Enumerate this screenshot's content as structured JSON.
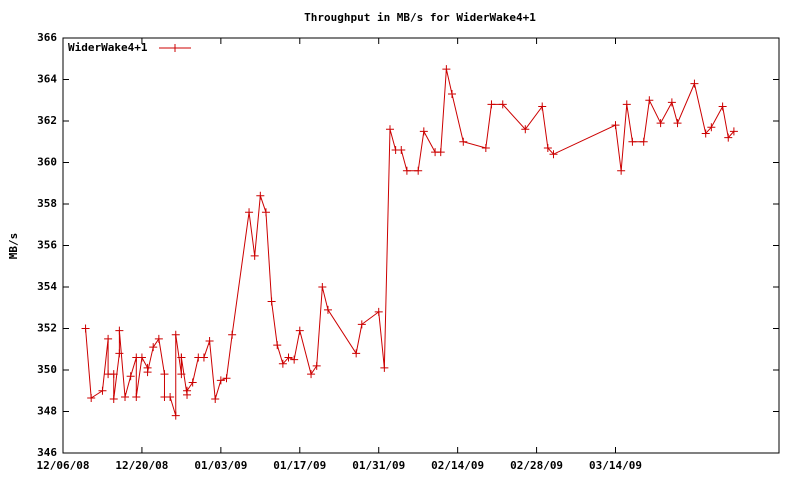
{
  "chart_data": {
    "type": "line",
    "title": "Throughput in MB/s for WiderWake4+1",
    "y_label": "MB/s",
    "legend": "top-left",
    "xlim": [
      "12/06/08",
      "04/12/09"
    ],
    "xticks": [
      "12/06/08",
      "12/20/08",
      "01/03/09",
      "01/17/09",
      "01/31/09",
      "02/14/09",
      "02/28/09",
      "03/14/09"
    ],
    "ylim": [
      346,
      366
    ],
    "yticks": [
      346,
      348,
      350,
      352,
      354,
      356,
      358,
      360,
      362,
      364,
      366
    ],
    "x": [
      "12/10/08",
      "12/11/08",
      "12/13/08",
      "12/14/08",
      "12/14/08",
      "12/15/08",
      "12/15/08",
      "12/16/08",
      "12/16/08",
      "12/17/08",
      "12/18/08",
      "12/19/08",
      "12/19/08",
      "12/20/08",
      "12/21/08",
      "12/21/08",
      "12/22/08",
      "12/23/08",
      "12/24/08",
      "12/24/08",
      "12/25/08",
      "12/26/08",
      "12/26/08",
      "12/27/08",
      "12/27/08",
      "12/27/08",
      "12/28/08",
      "12/28/08",
      "12/29/08",
      "12/30/08",
      "12/31/08",
      "01/01/09",
      "01/02/09",
      "01/03/09",
      "01/04/09",
      "01/05/09",
      "01/08/09",
      "01/09/09",
      "01/10/09",
      "01/11/09",
      "01/12/09",
      "01/13/09",
      "01/14/09",
      "01/15/09",
      "01/16/09",
      "01/17/09",
      "01/19/09",
      "01/20/09",
      "01/21/09",
      "01/22/09",
      "01/27/09",
      "01/28/09",
      "01/31/09",
      "02/01/09",
      "02/02/09",
      "02/03/09",
      "02/04/09",
      "02/05/09",
      "02/07/09",
      "02/08/09",
      "02/10/09",
      "02/11/09",
      "02/12/09",
      "02/13/09",
      "02/15/09",
      "02/19/09",
      "02/20/09",
      "02/22/09",
      "02/26/09",
      "03/01/09",
      "03/02/09",
      "03/03/09",
      "03/14/09",
      "03/15/09",
      "03/16/09",
      "03/17/09",
      "03/19/09",
      "03/20/09",
      "03/22/09",
      "03/24/09",
      "03/25/09",
      "03/28/09",
      "03/30/09",
      "03/31/09",
      "04/02/09",
      "04/03/09",
      "04/04/09"
    ],
    "series": [
      {
        "name": "WiderWake4+1",
        "color": "#cc0000",
        "values": [
          352.0,
          348.65,
          349.0,
          351.5,
          349.8,
          349.8,
          348.6,
          350.8,
          351.9,
          348.7,
          349.7,
          350.6,
          348.7,
          350.6,
          350.1,
          349.9,
          351.1,
          351.5,
          349.8,
          348.7,
          348.7,
          347.8,
          351.7,
          349.8,
          350.6,
          350.6,
          348.8,
          349.0,
          349.4,
          350.6,
          350.6,
          351.4,
          348.6,
          349.5,
          349.6,
          351.7,
          357.6,
          355.5,
          358.4,
          357.6,
          353.3,
          351.2,
          350.3,
          350.6,
          350.5,
          351.9,
          349.8,
          350.2,
          354.0,
          352.9,
          350.8,
          352.2,
          352.8,
          350.1,
          361.6,
          360.6,
          360.6,
          359.6,
          359.6,
          361.5,
          360.5,
          360.5,
          364.5,
          363.3,
          361.0,
          360.7,
          362.8,
          362.8,
          361.6,
          362.7,
          360.7,
          360.4,
          361.8,
          359.6,
          362.8,
          361.0,
          361.0,
          363.0,
          361.9,
          362.9,
          361.9,
          363.8,
          361.4,
          361.7,
          362.7,
          361.2,
          361.5
        ]
      }
    ]
  }
}
